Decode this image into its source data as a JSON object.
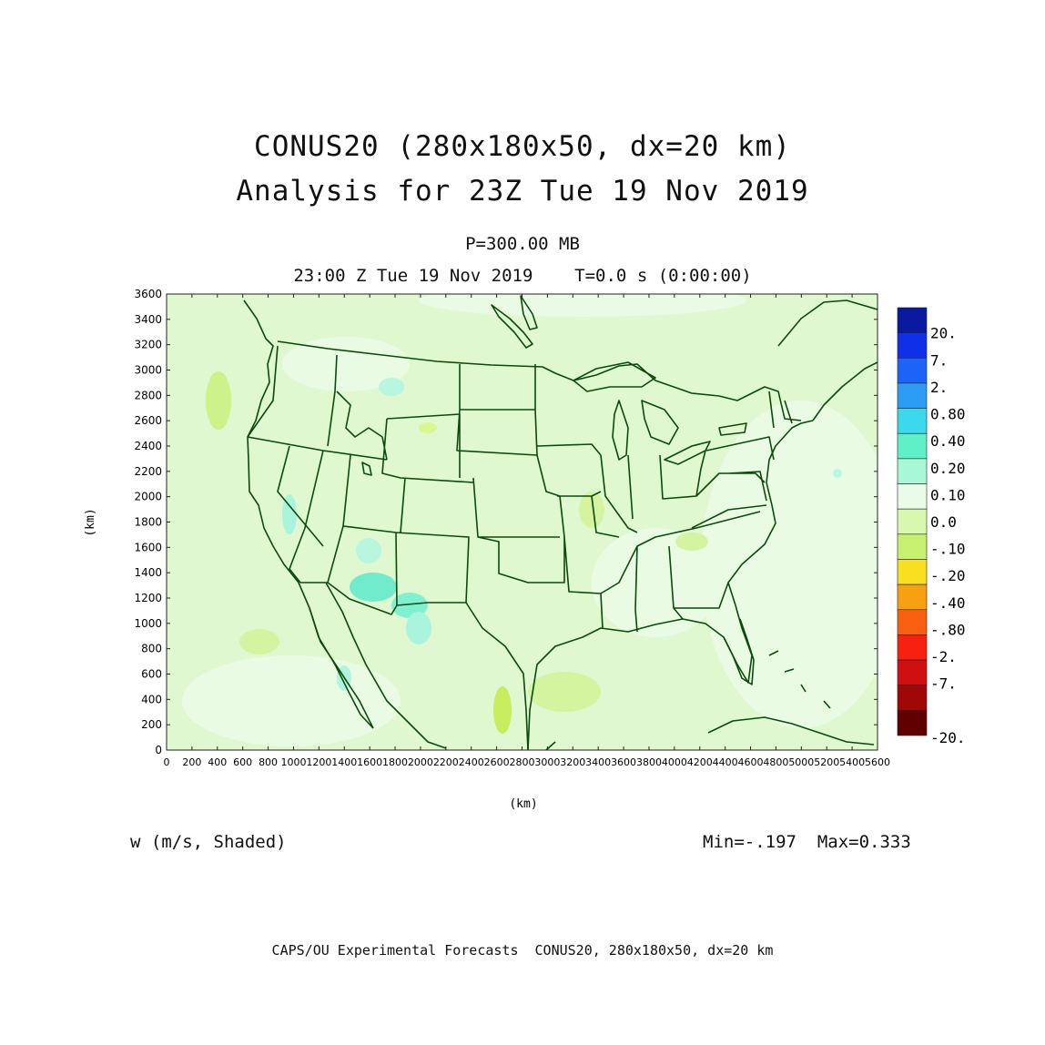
{
  "header": {
    "title_line1": "CONUS20 (280x180x50, dx=20 km)",
    "title_line2": "Analysis for 23Z Tue 19 Nov 2019",
    "level": "P=300.00 MB",
    "time": "23:00 Z Tue 19 Nov 2019    T=0.0 s (0:00:00)"
  },
  "map": {
    "x_axis_label": "(km)",
    "y_axis_label": "(km)",
    "x_ticks": [
      "0",
      "200",
      "400",
      "600",
      "800",
      "1000",
      "1200",
      "1400",
      "1600",
      "1800",
      "2000",
      "2200",
      "2400",
      "2600",
      "2800",
      "3000",
      "3200",
      "3400",
      "3600",
      "3800",
      "4000",
      "4200",
      "4400",
      "4600",
      "4800",
      "5000",
      "5200",
      "5400",
      "5600"
    ],
    "y_ticks": [
      "0",
      "200",
      "400",
      "600",
      "800",
      "1000",
      "1200",
      "1400",
      "1600",
      "1800",
      "2000",
      "2200",
      "2400",
      "2600",
      "2800",
      "3000",
      "3200",
      "3400",
      "3600"
    ],
    "x_range": [
      0,
      5600
    ],
    "y_range": [
      0,
      3600
    ],
    "field_background_color": "#e0f8d0",
    "boundary_color": "#0a4a0a"
  },
  "colorbar": {
    "labels": [
      "20.",
      "7.",
      "2.",
      "0.80",
      "0.40",
      "0.20",
      "0.10",
      "0.0",
      "-.10",
      "-.20",
      "-.40",
      "-.80",
      "-2.",
      "-7.",
      "-20."
    ],
    "colors": [
      "#0a1aa0",
      "#1030e8",
      "#1c64f8",
      "#2c9cf4",
      "#3cd8ec",
      "#60f0c8",
      "#a8f8d8",
      "#e8fce8",
      "#d8f8b0",
      "#c8f070",
      "#f8e020",
      "#f8a010",
      "#f86010",
      "#f82010",
      "#d01010",
      "#a00808",
      "#600000"
    ]
  },
  "footer": {
    "variable": "w (m/s, Shaded)",
    "minmax": "Min=-.197  Max=0.333",
    "credit": "CAPS/OU Experimental Forecasts  CONUS20, 280x180x50, dx=20 km"
  }
}
